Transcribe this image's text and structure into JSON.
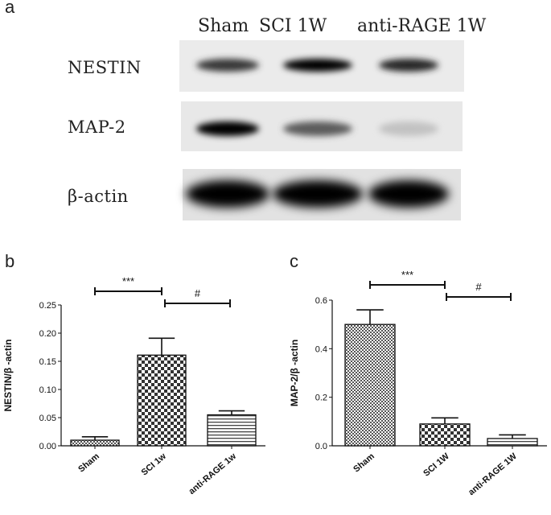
{
  "figure": {
    "panel_a": {
      "letter": "a",
      "lanes": [
        "Sham",
        "SCI 1W",
        "anti-RAGE 1W"
      ],
      "blots": [
        {
          "label": "NESTIN",
          "intensities": [
            0.78,
            1.0,
            0.86
          ]
        },
        {
          "label": "MAP-2",
          "intensities": [
            1.0,
            0.62,
            0.18
          ]
        },
        {
          "label": "β-actin",
          "intensities": [
            1.0,
            1.0,
            1.0
          ]
        }
      ]
    },
    "panel_b": {
      "letter": "b",
      "ytick_labels": [
        "0.00",
        "0.05",
        "0.10",
        "0.15",
        "0.20",
        "0.25"
      ],
      "significance": [
        {
          "text": "***",
          "from": 0,
          "to": 1
        },
        {
          "text": "#",
          "from": 1,
          "to": 2
        }
      ]
    },
    "panel_c": {
      "letter": "c",
      "ytick_labels": [
        "0.0",
        "0.2",
        "0.4",
        "0.6"
      ],
      "significance": [
        {
          "text": "***",
          "from": 0,
          "to": 1
        },
        {
          "text": "#",
          "from": 1,
          "to": 2
        }
      ]
    }
  },
  "chart_data": [
    {
      "type": "bar",
      "categories": [
        "Sham",
        "SCI 1w",
        "anti-RAGE 1w"
      ],
      "values": [
        0.01,
        0.161,
        0.055
      ],
      "errors": [
        0.006,
        0.03,
        0.007
      ],
      "patterns": [
        "dots",
        "checker",
        "hlines"
      ],
      "title": "",
      "xlabel": "",
      "ylabel": "NESTIN/β -actin",
      "ylim": [
        0,
        0.25
      ],
      "yticks": [
        0.0,
        0.05,
        0.1,
        0.15,
        0.2,
        0.25
      ],
      "grid": false
    },
    {
      "type": "bar",
      "categories": [
        "Sham",
        "SCI 1W",
        "anti-RAGE 1W"
      ],
      "values": [
        0.5,
        0.09,
        0.03
      ],
      "errors": [
        0.06,
        0.025,
        0.015
      ],
      "patterns": [
        "dots",
        "checker",
        "hlines"
      ],
      "title": "",
      "xlabel": "",
      "ylabel": "MAP-2/β -actin",
      "ylim": [
        0,
        0.6
      ],
      "yticks": [
        0.0,
        0.2,
        0.4,
        0.6
      ],
      "grid": false
    }
  ]
}
